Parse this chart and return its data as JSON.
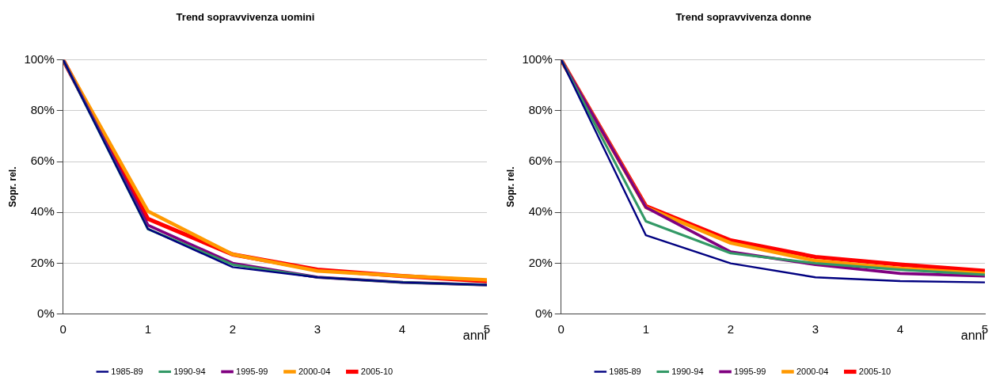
{
  "chart_data": [
    {
      "type": "line",
      "title": "Trend sopravvivenza uomini",
      "xlabel": "anni",
      "ylabel": "Sopr. rel.",
      "x": [
        0,
        1,
        2,
        3,
        4,
        5
      ],
      "xlim": [
        0,
        5
      ],
      "xticks": [
        0,
        1,
        2,
        3,
        4,
        5
      ],
      "ylim": [
        0,
        100
      ],
      "yticks": [
        {
          "value": 0,
          "label": "0%"
        },
        {
          "value": 20,
          "label": "20%"
        },
        {
          "value": 40,
          "label": "40%"
        },
        {
          "value": 60,
          "label": "60%"
        },
        {
          "value": 80,
          "label": "80%"
        },
        {
          "value": 100,
          "label": "100%"
        }
      ],
      "grid": "y",
      "legend": "bottom",
      "marker": "none",
      "series": [
        {
          "name": "1985-89",
          "color": "#000080",
          "values": [
            100,
            33.5,
            18.5,
            14.5,
            12.5,
            11.5
          ]
        },
        {
          "name": "1990-94",
          "color": "#339966",
          "values": [
            100,
            33.5,
            19.5,
            14.5,
            12.5,
            11.5
          ]
        },
        {
          "name": "1995-99",
          "color": "#800080",
          "values": [
            100,
            35,
            20,
            14.5,
            12.5,
            11.5
          ]
        },
        {
          "name": "2000-04",
          "color": "#ff9900",
          "values": [
            100,
            40.5,
            23.5,
            17,
            15,
            13.5
          ]
        },
        {
          "name": "2005-10",
          "color": "#ff0000",
          "values": [
            100,
            37.5,
            23.5,
            17.5,
            15,
            13
          ]
        }
      ]
    },
    {
      "type": "line",
      "title": "Trend sopravvivenza donne",
      "xlabel": "anni",
      "ylabel": "Sopr. rel.",
      "x": [
        0,
        1,
        2,
        3,
        4,
        5
      ],
      "xlim": [
        0,
        5
      ],
      "xticks": [
        0,
        1,
        2,
        3,
        4,
        5
      ],
      "ylim": [
        0,
        100
      ],
      "yticks": [
        {
          "value": 0,
          "label": "0%"
        },
        {
          "value": 20,
          "label": "20%"
        },
        {
          "value": 40,
          "label": "40%"
        },
        {
          "value": 60,
          "label": "60%"
        },
        {
          "value": 80,
          "label": "80%"
        },
        {
          "value": 100,
          "label": "100%"
        }
      ],
      "grid": "y",
      "legend": "bottom",
      "marker": "none",
      "series": [
        {
          "name": "1985-89",
          "color": "#000080",
          "values": [
            100,
            31,
            20,
            14.5,
            13,
            12.5
          ]
        },
        {
          "name": "1990-94",
          "color": "#339966",
          "values": [
            100,
            36.5,
            24,
            20,
            17.5,
            15.5
          ]
        },
        {
          "name": "1995-99",
          "color": "#800080",
          "values": [
            100,
            42,
            24.5,
            19.5,
            16,
            15
          ]
        },
        {
          "name": "2000-04",
          "color": "#ff9900",
          "values": [
            100,
            42,
            28,
            21,
            18,
            16
          ]
        },
        {
          "name": "2005-10",
          "color": "#ff0000",
          "values": [
            100,
            42.5,
            29,
            22.5,
            19.5,
            17
          ]
        }
      ]
    }
  ]
}
